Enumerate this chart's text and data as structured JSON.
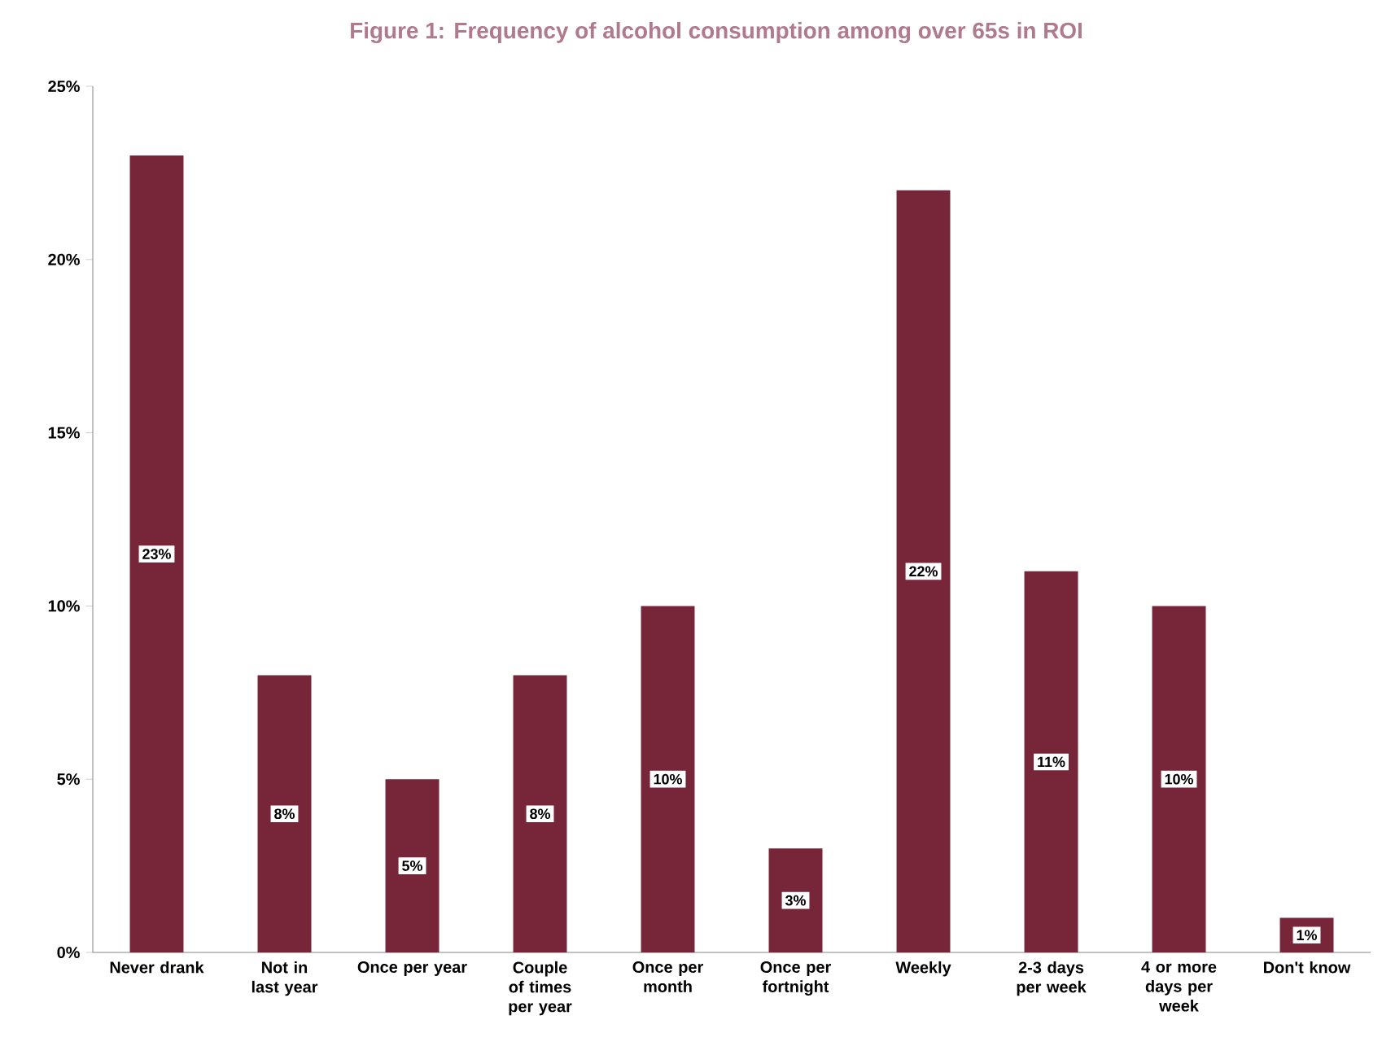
{
  "chart_data": {
    "type": "bar",
    "title": "Figure 1: Frequency of alcohol consumption among over 65s in ROI",
    "categories": [
      "Never drank",
      "Not in last year",
      "Once per year",
      "Couple of times per year",
      "Once per month",
      "Once per fortnight",
      "Weekly",
      "2-3 days per week",
      "4 or more days per week",
      "Don't know"
    ],
    "values": [
      23,
      8,
      5,
      8,
      10,
      3,
      22,
      11,
      10,
      1
    ],
    "value_labels": [
      "23%",
      "8%",
      "5%",
      "8%",
      "10%",
      "3%",
      "22%",
      "11%",
      "10%",
      "1%"
    ],
    "color": "#772538",
    "ylim": [
      0,
      25
    ],
    "yticks": [
      {
        "value": 0,
        "label": "0%"
      },
      {
        "value": 5,
        "label": "5%"
      },
      {
        "value": 10,
        "label": "10%"
      },
      {
        "value": 15,
        "label": "15%"
      },
      {
        "value": 20,
        "label": "20%"
      },
      {
        "value": 25,
        "label": "25%"
      }
    ]
  }
}
